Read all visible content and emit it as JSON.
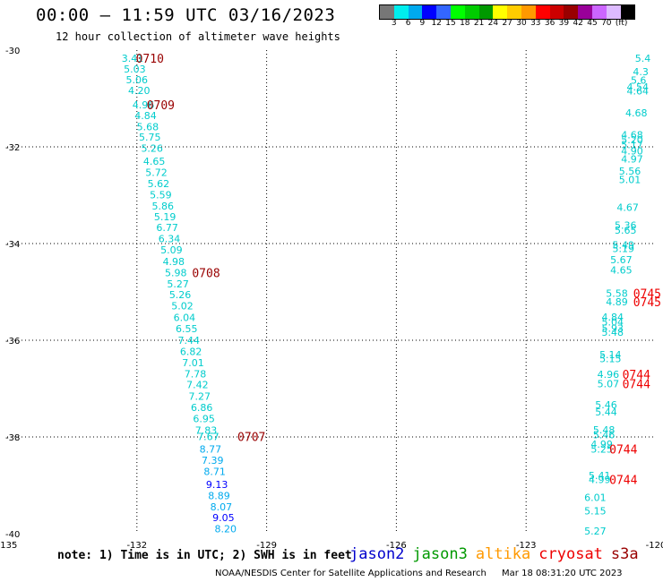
{
  "header": {
    "title": "00:00 – 11:59 UTC 03/16/2023",
    "subtitle": "12 hour collection of altimeter wave heights"
  },
  "legend": {
    "unit": "(ft)",
    "colors": [
      "#777777",
      "#00eeee",
      "#00aaee",
      "#0000ff",
      "#3366ff",
      "#00ff00",
      "#00cc00",
      "#009900",
      "#ffff00",
      "#ffcc00",
      "#ff9900",
      "#ff0000",
      "#cc0000",
      "#990000",
      "#990099",
      "#cc66ff",
      "#ddbbff",
      "#000000"
    ],
    "ticks": [
      "3",
      "6",
      "9",
      "12",
      "15",
      "18",
      "21",
      "24",
      "27",
      "30",
      "33",
      "36",
      "39",
      "42",
      "45",
      "70"
    ]
  },
  "footer": {
    "note": "note: 1) Time is in UTC; 2) SWH is in feet",
    "missions": [
      {
        "name": "jason2",
        "color": "#0000cc"
      },
      {
        "name": "jason3",
        "color": "#009900"
      },
      {
        "name": "altika",
        "color": "#ff9900"
      },
      {
        "name": "cryosat",
        "color": "#ee0000"
      },
      {
        "name": "s3a",
        "color": "#990000"
      }
    ],
    "credit": "NOAA/NESDIS Center for Satellite Applications and Research",
    "timestamp": "Mar 18 08:31:20 UTC 2023"
  },
  "chart_data": {
    "type": "scatter",
    "title": "00:00 – 11:59 UTC 03/16/2023",
    "subtitle": "12 hour collection of altimeter wave heights",
    "xlim": [
      -135,
      -120
    ],
    "ylim": [
      -40,
      -30
    ],
    "xticks": [
      -135,
      -132,
      -129,
      -126,
      -123,
      -120
    ],
    "xtick_labels": [
      "-135",
      "-132",
      "-129",
      "-126",
      "-123",
      "-120"
    ],
    "yticks": [
      -30,
      -32,
      -34,
      -36,
      -38,
      -40
    ],
    "ytick_labels": [
      "-30",
      "-32",
      "-34",
      "-36",
      "-38",
      "-40"
    ],
    "grid": true,
    "series": [
      {
        "name": "track1",
        "points": [
          {
            "x": -132.1,
            "y": -30.17,
            "label": "3.41",
            "color": "#00cccc"
          },
          {
            "x": -132.05,
            "y": -30.39,
            "label": "5.03",
            "color": "#00cccc"
          },
          {
            "x": -132.0,
            "y": -30.61,
            "label": "5.06",
            "color": "#00cccc"
          },
          {
            "x": -131.95,
            "y": -30.83,
            "label": "4.20",
            "color": "#00cccc"
          },
          {
            "x": -131.85,
            "y": -31.13,
            "label": "4.96",
            "color": "#00cccc"
          },
          {
            "x": -131.8,
            "y": -31.35,
            "label": "4.84",
            "color": "#00cccc"
          },
          {
            "x": -131.75,
            "y": -31.58,
            "label": "5.68",
            "color": "#00cccc"
          },
          {
            "x": -131.7,
            "y": -31.8,
            "label": "5.75",
            "color": "#00cccc"
          },
          {
            "x": -131.65,
            "y": -32.03,
            "label": "5.26",
            "color": "#00cccc"
          },
          {
            "x": -131.6,
            "y": -32.3,
            "label": "4.65",
            "color": "#00cccc"
          },
          {
            "x": -131.55,
            "y": -32.53,
            "label": "5.72",
            "color": "#00cccc"
          },
          {
            "x": -131.5,
            "y": -32.76,
            "label": "5.62",
            "color": "#00cccc"
          },
          {
            "x": -131.45,
            "y": -32.99,
            "label": "5.59",
            "color": "#00cccc"
          },
          {
            "x": -131.4,
            "y": -33.22,
            "label": "5.86",
            "color": "#00cccc"
          },
          {
            "x": -131.35,
            "y": -33.44,
            "label": "5.19",
            "color": "#00cccc"
          },
          {
            "x": -131.3,
            "y": -33.67,
            "label": "6.77",
            "color": "#00cccc"
          },
          {
            "x": -131.25,
            "y": -33.9,
            "label": "6.34",
            "color": "#00cccc"
          },
          {
            "x": -131.2,
            "y": -34.13,
            "label": "5.09",
            "color": "#00cccc"
          },
          {
            "x": -131.15,
            "y": -34.37,
            "label": "4.98",
            "color": "#00cccc"
          },
          {
            "x": -131.1,
            "y": -34.6,
            "label": "5.98",
            "color": "#00cccc"
          },
          {
            "x": -131.05,
            "y": -34.83,
            "label": "5.27",
            "color": "#00cccc"
          },
          {
            "x": -131.0,
            "y": -35.06,
            "label": "5.26",
            "color": "#00cccc"
          },
          {
            "x": -130.95,
            "y": -35.29,
            "label": "5.02",
            "color": "#00cccc"
          },
          {
            "x": -130.9,
            "y": -35.53,
            "label": "6.04",
            "color": "#00cccc"
          },
          {
            "x": -130.85,
            "y": -35.76,
            "label": "6.55",
            "color": "#00cccc"
          },
          {
            "x": -130.8,
            "y": -36.0,
            "label": "7.44",
            "color": "#00cccc"
          },
          {
            "x": -130.75,
            "y": -36.23,
            "label": "6.82",
            "color": "#00cccc"
          },
          {
            "x": -130.7,
            "y": -36.46,
            "label": "7.01",
            "color": "#00cccc"
          },
          {
            "x": -130.65,
            "y": -36.69,
            "label": "7.78",
            "color": "#00cccc"
          },
          {
            "x": -130.6,
            "y": -36.92,
            "label": "7.42",
            "color": "#00cccc"
          },
          {
            "x": -130.55,
            "y": -37.16,
            "label": "7.27",
            "color": "#00cccc"
          },
          {
            "x": -130.5,
            "y": -37.39,
            "label": "6.86",
            "color": "#00cccc"
          },
          {
            "x": -130.45,
            "y": -37.62,
            "label": "6.95",
            "color": "#00cccc"
          },
          {
            "x": -130.4,
            "y": -37.86,
            "label": "7.83",
            "color": "#00cccc"
          },
          {
            "x": -130.35,
            "y": -37.99,
            "label": "7.67",
            "color": "#00cccc"
          },
          {
            "x": -130.3,
            "y": -38.25,
            "label": "8.77",
            "color": "#00aaee"
          },
          {
            "x": -130.25,
            "y": -38.48,
            "label": "7.39",
            "color": "#00aaee"
          },
          {
            "x": -130.2,
            "y": -38.71,
            "label": "8.71",
            "color": "#00aaee"
          },
          {
            "x": -130.15,
            "y": -38.98,
            "label": "9.13",
            "color": "#0000ff"
          },
          {
            "x": -130.1,
            "y": -39.21,
            "label": "8.89",
            "color": "#00aaee"
          },
          {
            "x": -130.05,
            "y": -39.44,
            "label": "8.07",
            "color": "#00aaee"
          },
          {
            "x": -130.0,
            "y": -39.67,
            "label": "9.05",
            "color": "#0000ff"
          },
          {
            "x": -129.95,
            "y": -39.9,
            "label": "8.20",
            "color": "#00aaee"
          }
        ]
      },
      {
        "name": "track2",
        "points": [
          {
            "x": -120.3,
            "y": -30.17,
            "label": "5.4",
            "color": "#00cccc"
          },
          {
            "x": -120.35,
            "y": -30.44,
            "label": "4.3",
            "color": "#00cccc"
          },
          {
            "x": -120.4,
            "y": -30.62,
            "label": "5.6",
            "color": "#00cccc"
          },
          {
            "x": -120.42,
            "y": -30.76,
            "label": "4.54",
            "color": "#00cccc"
          },
          {
            "x": -120.42,
            "y": -30.84,
            "label": "4.64",
            "color": "#00cccc"
          },
          {
            "x": -120.45,
            "y": -31.3,
            "label": "4.68",
            "color": "#00cccc"
          },
          {
            "x": -120.55,
            "y": -31.75,
            "label": "4.68",
            "color": "#00cccc"
          },
          {
            "x": -120.55,
            "y": -31.85,
            "label": "5.20",
            "color": "#00cccc"
          },
          {
            "x": -120.55,
            "y": -31.95,
            "label": "5.17",
            "color": "#00cccc"
          },
          {
            "x": -120.55,
            "y": -32.08,
            "label": "4.90",
            "color": "#00cccc"
          },
          {
            "x": -120.55,
            "y": -32.25,
            "label": "4.97",
            "color": "#00cccc"
          },
          {
            "x": -120.6,
            "y": -32.5,
            "label": "5.56",
            "color": "#00cccc"
          },
          {
            "x": -120.6,
            "y": -32.68,
            "label": "5.01",
            "color": "#00cccc"
          },
          {
            "x": -120.65,
            "y": -33.25,
            "label": "4.67",
            "color": "#00cccc"
          },
          {
            "x": -120.7,
            "y": -33.62,
            "label": "5.36",
            "color": "#00cccc"
          },
          {
            "x": -120.7,
            "y": -33.72,
            "label": "5.65",
            "color": "#00cccc"
          },
          {
            "x": -120.75,
            "y": -34.03,
            "label": "5.49",
            "color": "#00cccc"
          },
          {
            "x": -120.75,
            "y": -34.1,
            "label": "5.19",
            "color": "#00cccc"
          },
          {
            "x": -120.8,
            "y": -34.33,
            "label": "5.67",
            "color": "#00cccc"
          },
          {
            "x": -120.8,
            "y": -34.55,
            "label": "4.65",
            "color": "#00cccc"
          },
          {
            "x": -120.9,
            "y": -35.03,
            "label": "5.58",
            "color": "#00cccc"
          },
          {
            "x": -120.9,
            "y": -35.2,
            "label": "4.89",
            "color": "#00cccc"
          },
          {
            "x": -121.0,
            "y": -35.52,
            "label": "4.84",
            "color": "#00cccc"
          },
          {
            "x": -121.0,
            "y": -35.62,
            "label": "5.04",
            "color": "#00cccc"
          },
          {
            "x": -121.0,
            "y": -35.75,
            "label": "5.93",
            "color": "#00cccc"
          },
          {
            "x": -121.0,
            "y": -35.83,
            "label": "5.48",
            "color": "#00cccc"
          },
          {
            "x": -121.05,
            "y": -36.3,
            "label": "5.14",
            "color": "#00cccc"
          },
          {
            "x": -121.05,
            "y": -36.38,
            "label": "5.15",
            "color": "#00cccc"
          },
          {
            "x": -121.1,
            "y": -36.7,
            "label": "4.96",
            "color": "#00cccc"
          },
          {
            "x": -121.1,
            "y": -36.9,
            "label": "5.07",
            "color": "#00cccc"
          },
          {
            "x": -121.15,
            "y": -37.33,
            "label": "5.46",
            "color": "#00cccc"
          },
          {
            "x": -121.15,
            "y": -37.48,
            "label": "5.44",
            "color": "#00cccc"
          },
          {
            "x": -121.2,
            "y": -37.85,
            "label": "5.48",
            "color": "#00cccc"
          },
          {
            "x": -121.2,
            "y": -37.95,
            "label": "5.46",
            "color": "#00cccc"
          },
          {
            "x": -121.25,
            "y": -38.15,
            "label": "4.99",
            "color": "#00cccc"
          },
          {
            "x": -121.25,
            "y": -38.25,
            "label": "5.25",
            "color": "#00cccc"
          },
          {
            "x": -121.3,
            "y": -38.8,
            "label": "5.41",
            "color": "#00cccc"
          },
          {
            "x": -121.3,
            "y": -38.88,
            "label": "4.99",
            "color": "#00cccc"
          },
          {
            "x": -121.4,
            "y": -39.25,
            "label": "6.01",
            "color": "#00cccc"
          },
          {
            "x": -121.4,
            "y": -39.53,
            "label": "5.15",
            "color": "#00cccc"
          },
          {
            "x": -121.4,
            "y": -39.94,
            "label": "5.27",
            "color": "#00cccc"
          }
        ]
      }
    ],
    "annotations": [
      {
        "x": -131.7,
        "y": -30.17,
        "text": "0710",
        "color": "#990000"
      },
      {
        "x": -131.45,
        "y": -31.13,
        "text": "0709",
        "color": "#990000"
      },
      {
        "x": -130.4,
        "y": -34.6,
        "text": "0708",
        "color": "#990000"
      },
      {
        "x": -129.35,
        "y": -37.99,
        "text": "0707",
        "color": "#990000"
      },
      {
        "x": -120.2,
        "y": -35.03,
        "text": "0745",
        "color": "#ee0000"
      },
      {
        "x": -120.2,
        "y": -35.2,
        "text": "0745",
        "color": "#ee0000"
      },
      {
        "x": -120.45,
        "y": -36.7,
        "text": "0744",
        "color": "#ee0000"
      },
      {
        "x": -120.45,
        "y": -36.9,
        "text": "0744",
        "color": "#ee0000"
      },
      {
        "x": -120.75,
        "y": -38.25,
        "text": "0744",
        "color": "#ee0000"
      },
      {
        "x": -120.75,
        "y": -38.88,
        "text": "0744",
        "color": "#ee0000"
      }
    ]
  }
}
